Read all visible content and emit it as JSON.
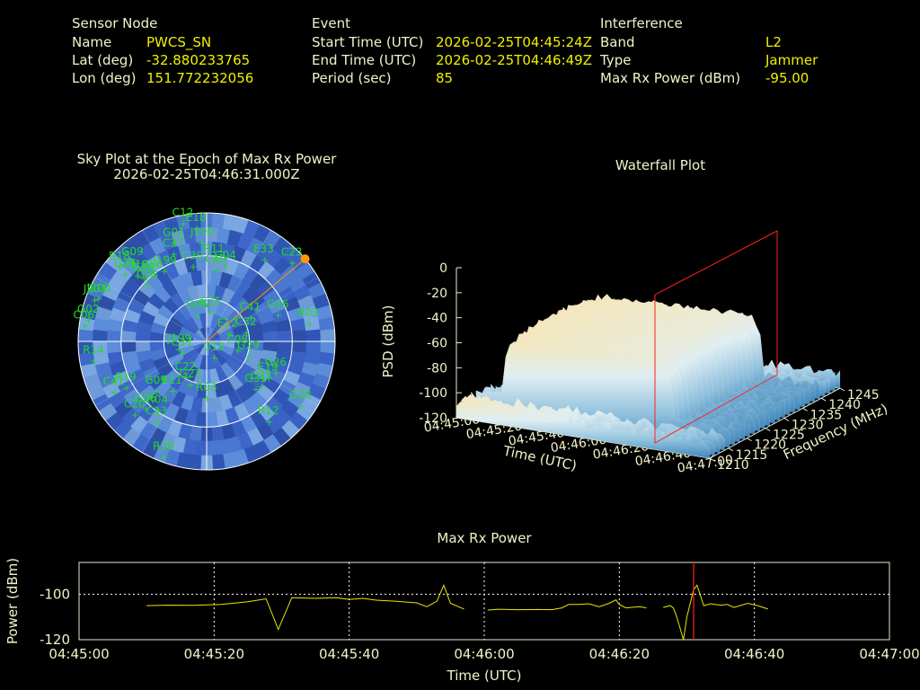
{
  "header": {
    "sensor": {
      "title": "Sensor Node",
      "rows": [
        {
          "label": "Name",
          "value": "PWCS_SN"
        },
        {
          "label": "Lat (deg)",
          "value": "-32.880233765"
        },
        {
          "label": "Lon (deg)",
          "value": "151.772232056"
        }
      ]
    },
    "event": {
      "title": "Event",
      "rows": [
        {
          "label": "Start Time (UTC)",
          "value": "2026-02-25T04:45:24Z"
        },
        {
          "label": "End Time (UTC)",
          "value": "2026-02-25T04:46:49Z"
        },
        {
          "label": "Period (sec)",
          "value": "85"
        }
      ]
    },
    "interference": {
      "title": "Interference",
      "rows": [
        {
          "label": "Band",
          "value": "L2"
        },
        {
          "label": "Type",
          "value": "Jammer"
        },
        {
          "label": "Max Rx Power (dBm)",
          "value": "-95.00"
        }
      ]
    }
  },
  "colors": {
    "label": "#f2f2c8",
    "value": "#f0f000",
    "satellite": "#22dd22",
    "jammer": "#ff9900",
    "power_line": "#e8e800",
    "epoch_marker": "#ff2020",
    "sky_fill": "#3a5fbf"
  },
  "chart_data": [
    {
      "type": "scatter",
      "name": "sky_plot",
      "title": "Sky Plot at the Epoch of Max Rx Power",
      "subtitle": "2026-02-25T04:46:31.000Z",
      "polar": true,
      "rings_elevation_deg": [
        0,
        30,
        60
      ],
      "jammer_marker": {
        "azimuth_deg": 50,
        "elevation_deg": 0
      },
      "satellites": [
        {
          "id": "C12",
          "az": 349,
          "el": 3
        },
        {
          "id": "E18",
          "az": 355,
          "el": 8
        },
        {
          "id": "G01",
          "az": 342,
          "el": 15
        },
        {
          "id": "J195",
          "az": 357,
          "el": 18
        },
        {
          "id": "C37",
          "az": 340,
          "el": 22
        },
        {
          "id": "G09",
          "az": 318,
          "el": 12
        },
        {
          "id": "R18",
          "az": 312,
          "el": 8
        },
        {
          "id": "G07",
          "az": 311,
          "el": 14
        },
        {
          "id": "G18",
          "az": 315,
          "el": 21
        },
        {
          "id": "E24",
          "az": 317,
          "el": 26
        },
        {
          "id": "C56",
          "az": 322,
          "el": 28
        },
        {
          "id": "G93",
          "az": 315,
          "el": 31
        },
        {
          "id": "J199",
          "az": 330,
          "el": 30
        },
        {
          "id": "C30",
          "az": 350,
          "el": 34
        },
        {
          "id": "R11",
          "az": 5,
          "el": 30
        },
        {
          "id": "C40",
          "az": 7,
          "el": 37
        },
        {
          "id": "G04",
          "az": 13,
          "el": 33
        },
        {
          "id": "E33",
          "az": 34,
          "el": 18
        },
        {
          "id": "C23",
          "az": 46,
          "el": 7
        },
        {
          "id": "J200",
          "az": 293,
          "el": 7
        },
        {
          "id": "J201",
          "az": 292,
          "el": 5
        },
        {
          "id": "G02",
          "az": 282,
          "el": 5
        },
        {
          "id": "C06",
          "az": 279,
          "el": 3
        },
        {
          "id": "R14",
          "az": 262,
          "el": 10
        },
        {
          "id": "G05",
          "az": 342,
          "el": 68
        },
        {
          "id": "C25",
          "az": 7,
          "el": 67
        },
        {
          "id": "G16",
          "az": 67,
          "el": 36
        },
        {
          "id": "C41",
          "az": 58,
          "el": 54
        },
        {
          "id": "C32",
          "az": 72,
          "el": 61
        },
        {
          "id": "R02",
          "az": 78,
          "el": 17
        },
        {
          "id": "E12",
          "az": 62,
          "el": 73
        },
        {
          "id": "C08",
          "az": 100,
          "el": 68
        },
        {
          "id": "G29",
          "az": 105,
          "el": 60
        },
        {
          "id": "U13",
          "az": 150,
          "el": 80
        },
        {
          "id": "J199b",
          "az": 262,
          "el": 70
        },
        {
          "id": "C37b",
          "az": 252,
          "el": 72
        },
        {
          "id": "G26",
          "az": 112,
          "el": 38
        },
        {
          "id": "E19",
          "az": 118,
          "el": 41
        },
        {
          "id": "C35",
          "az": 127,
          "el": 42
        },
        {
          "id": "G31",
          "az": 132,
          "el": 44
        },
        {
          "id": "G28",
          "az": 123,
          "el": 12
        },
        {
          "id": "R12",
          "az": 141,
          "el": 21
        },
        {
          "id": "R03",
          "az": 180,
          "el": 53
        },
        {
          "id": "G23",
          "az": 203,
          "el": 60
        },
        {
          "id": "C22",
          "az": 213,
          "el": 63
        },
        {
          "id": "E11",
          "az": 217,
          "el": 50
        },
        {
          "id": "G09b",
          "az": 228,
          "el": 42
        },
        {
          "id": "R19",
          "az": 242,
          "el": 26
        },
        {
          "id": "C41b",
          "az": 243,
          "el": 17
        },
        {
          "id": "G06",
          "az": 224,
          "el": 28
        },
        {
          "id": "C20",
          "az": 226,
          "el": 20
        },
        {
          "id": "R04",
          "az": 217,
          "el": 33
        },
        {
          "id": "C13",
          "az": 213,
          "el": 26
        },
        {
          "id": "R28",
          "az": 201,
          "el": 6
        }
      ]
    },
    {
      "type": "area",
      "name": "waterfall",
      "title": "Waterfall Plot",
      "xlabel": "Time (UTC)",
      "ylabel": "Frequency (MHz)",
      "zlabel": "PSD (dBm)",
      "x_ticks": [
        "04:45:00",
        "04:45:20",
        "04:45:40",
        "04:46:00",
        "04:46:20",
        "04:46:40",
        "04:47:00"
      ],
      "y_ticks": [
        1210,
        1215,
        1220,
        1225,
        1230,
        1235,
        1240,
        1245
      ],
      "z_ticks": [
        0,
        -20,
        -40,
        -60,
        -80,
        -100,
        -120
      ],
      "zlim": [
        -120,
        0
      ],
      "band_mhz": [
        1215,
        1240
      ],
      "epoch_marker_time": "04:46:31"
    },
    {
      "type": "line",
      "name": "max_rx_power",
      "title": "Max Rx Power",
      "xlabel": "Time (UTC)",
      "ylabel": "Power (dBm)",
      "x_ticks": [
        "04:45:00",
        "04:45:20",
        "04:45:40",
        "04:46:00",
        "04:46:20",
        "04:46:40",
        "04:47:00"
      ],
      "y_ticks": [
        -100,
        -120
      ],
      "xlim_sec": [
        0,
        120
      ],
      "ylim": [
        -120,
        -86
      ],
      "epoch_marker_sec": 91,
      "series": [
        {
          "segments": [
            [
              [
                10,
                -105
              ],
              [
                13,
                -104.8
              ],
              [
                17,
                -104.9
              ],
              [
                21,
                -104.5
              ],
              [
                25,
                -103.3
              ],
              [
                27.7,
                -102
              ],
              [
                29.5,
                -115.5
              ],
              [
                31.5,
                -101.5
              ],
              [
                35,
                -101.8
              ],
              [
                38,
                -101.5
              ],
              [
                40,
                -102.3
              ],
              [
                42,
                -101.8
              ],
              [
                44,
                -102.6
              ],
              [
                47,
                -103.1
              ],
              [
                50,
                -103.8
              ],
              [
                51.5,
                -105.5
              ],
              [
                53,
                -103
              ],
              [
                54,
                -96
              ],
              [
                55,
                -104
              ],
              [
                57,
                -106.5
              ]
            ],
            [
              [
                60.5,
                -107
              ],
              [
                62,
                -106.6
              ],
              [
                65,
                -106.8
              ],
              [
                68,
                -106.7
              ],
              [
                70,
                -106.8
              ],
              [
                71.5,
                -106
              ],
              [
                72.5,
                -104.5
              ],
              [
                74,
                -104.5
              ],
              [
                75.5,
                -104.2
              ],
              [
                77,
                -105.5
              ],
              [
                78.5,
                -104
              ],
              [
                79.5,
                -102.5
              ],
              [
                80,
                -104.5
              ],
              [
                81,
                -106
              ],
              [
                83,
                -105.5
              ],
              [
                84,
                -106
              ]
            ],
            [
              [
                86.5,
                -105.8
              ],
              [
                87.5,
                -105
              ],
              [
                88,
                -106
              ],
              [
                88.5,
                -110
              ],
              [
                89,
                -115
              ],
              [
                89.5,
                -120
              ],
              [
                90,
                -110
              ],
              [
                91,
                -98
              ],
              [
                91.5,
                -96
              ],
              [
                92.5,
                -105
              ],
              [
                93.5,
                -104.2
              ],
              [
                95,
                -104.8
              ],
              [
                96,
                -104.5
              ],
              [
                97,
                -105.8
              ],
              [
                99,
                -104
              ],
              [
                100.5,
                -105
              ],
              [
                102,
                -106.5
              ]
            ]
          ]
        }
      ]
    }
  ]
}
